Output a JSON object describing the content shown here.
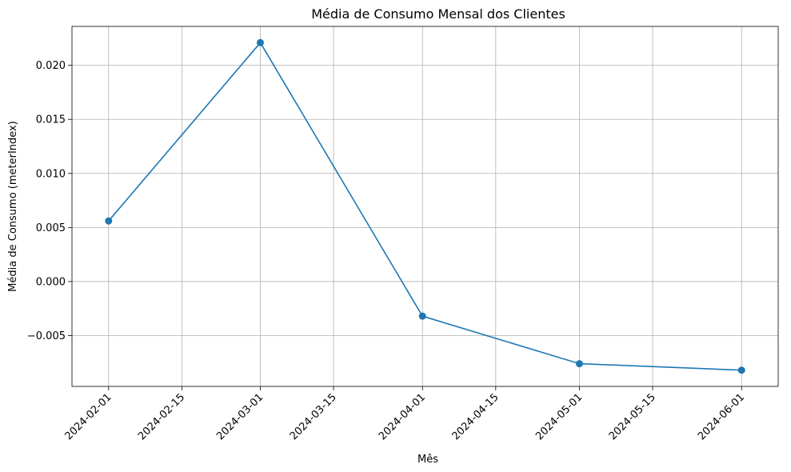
{
  "chart_data": {
    "type": "line",
    "title": "Média de Consumo Mensal dos Clientes",
    "xlabel": "Mês",
    "ylabel": "Média de Consumo (meterIndex)",
    "x": [
      "2024-02-01",
      "2024-03-01",
      "2024-04-01",
      "2024-05-01",
      "2024-06-01"
    ],
    "series": [
      {
        "values": [
          0.0056,
          0.0221,
          -0.0032,
          -0.0076,
          -0.0082
        ]
      }
    ],
    "xlim": [
      "2024-01-25",
      "2024-06-08"
    ],
    "ylim": [
      -0.0097,
      0.0236
    ],
    "x_ticks": [
      "2024-02-01",
      "2024-02-15",
      "2024-03-01",
      "2024-03-15",
      "2024-04-01",
      "2024-04-15",
      "2024-05-01",
      "2024-05-15",
      "2024-06-01"
    ],
    "y_ticks": [
      -0.005,
      0.0,
      0.005,
      0.01,
      0.015,
      0.02
    ],
    "y_tick_labels": [
      "−0.005",
      "0.000",
      "0.005",
      "0.010",
      "0.015",
      "0.020"
    ],
    "grid": true,
    "colors": {
      "series": "#1f77b4",
      "grid": "#b0b0b0"
    },
    "marker": "circle"
  }
}
